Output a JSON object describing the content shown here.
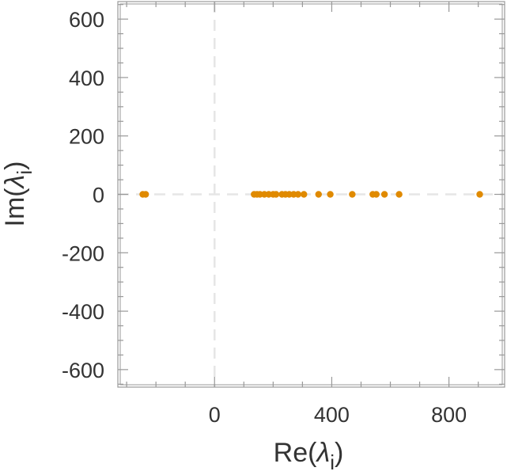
{
  "chart_data": {
    "type": "scatter",
    "title": "",
    "xlabel": {
      "prefix": "Re(",
      "symbol": "λ",
      "subscript": "i",
      "suffix": ")"
    },
    "ylabel": {
      "prefix": "Im(",
      "symbol": "λ",
      "subscript": "i",
      "suffix": ")"
    },
    "xlim": [
      -330,
      990
    ],
    "ylim": [
      -660,
      660
    ],
    "xticks": [
      0,
      400,
      800
    ],
    "xtick_labels": [
      "0",
      "400",
      "800"
    ],
    "yticks": [
      600,
      400,
      200,
      0,
      -200,
      -400,
      -600
    ],
    "ytick_labels": [
      "600",
      "400",
      "200",
      "0",
      "-200",
      "-400",
      "-600"
    ],
    "reference_lines": [
      "x = 0",
      "y = 0"
    ],
    "grid": false,
    "marker_color": "#E08A00",
    "reference_line_color": "#E6E6E6",
    "axis_color": "#999999",
    "text_color": "#333333",
    "points": [
      {
        "x": -245,
        "y": 0
      },
      {
        "x": -235,
        "y": 0
      },
      {
        "x": 135,
        "y": 0
      },
      {
        "x": 145,
        "y": 0
      },
      {
        "x": 155,
        "y": 0
      },
      {
        "x": 170,
        "y": 0
      },
      {
        "x": 185,
        "y": 0
      },
      {
        "x": 200,
        "y": 0
      },
      {
        "x": 210,
        "y": 0
      },
      {
        "x": 230,
        "y": 0
      },
      {
        "x": 242,
        "y": 0
      },
      {
        "x": 255,
        "y": 0
      },
      {
        "x": 270,
        "y": 0
      },
      {
        "x": 285,
        "y": 0
      },
      {
        "x": 305,
        "y": 0
      },
      {
        "x": 355,
        "y": 0
      },
      {
        "x": 395,
        "y": 0
      },
      {
        "x": 470,
        "y": 0
      },
      {
        "x": 540,
        "y": 0
      },
      {
        "x": 552,
        "y": 0
      },
      {
        "x": 580,
        "y": 0
      },
      {
        "x": 630,
        "y": 0
      },
      {
        "x": 905,
        "y": 0
      }
    ]
  }
}
